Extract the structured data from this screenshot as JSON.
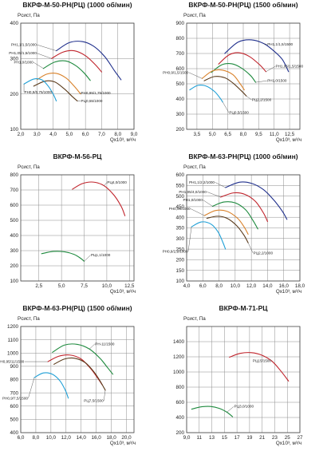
{
  "chart_data": [
    {
      "type": "line",
      "title": "ВКРФ-М-50-РН(РЦ) (1000 об/мин)",
      "ylabel": "Pсист, Па",
      "xlabel": "Qх10³, м³/ч",
      "xlim": [
        2.0,
        9.0
      ],
      "ylim": [
        100,
        400
      ],
      "xticks": [
        "2,0",
        "3,0",
        "4,0",
        "5,0",
        "6,0",
        "7,0",
        "8,0",
        "9,0"
      ],
      "yticks": [
        "100",
        "200",
        "300",
        "400"
      ],
      "grid": true,
      "series": [
        {
          "name": "РН1,1/1,5/1000",
          "color": "#1f2f8c",
          "points": [
            [
              4.2,
              322
            ],
            [
              5.0,
              345
            ],
            [
              5.8,
              348
            ],
            [
              6.5,
              335
            ],
            [
              7.2,
              305
            ],
            [
              7.8,
              265
            ],
            [
              8.2,
              240
            ]
          ],
          "label_at": [
            3.0,
            339
          ]
        },
        {
          "name": "РН1,05/1,5/1000",
          "color": "#c0232b",
          "points": [
            [
              3.9,
              300
            ],
            [
              4.6,
              318
            ],
            [
              5.3,
              322
            ],
            [
              6.0,
              308
            ],
            [
              6.6,
              283
            ],
            [
              7.0,
              262
            ]
          ],
          "label_at": [
            3.0,
            315
          ]
        },
        {
          "name": "РН1,0/1000",
          "color": "#1e8a3e",
          "points": [
            [
              3.4,
              272
            ],
            [
              4.1,
              290
            ],
            [
              4.8,
              293
            ],
            [
              5.4,
              280
            ],
            [
              5.9,
              260
            ],
            [
              6.3,
              238
            ]
          ],
          "label_at": [
            2.8,
            289
          ]
        },
        {
          "name": "РН0,95/1,75/1000",
          "color": "#d9822b",
          "points": [
            [
              3.0,
              240
            ],
            [
              3.6,
              256
            ],
            [
              4.2,
              258
            ],
            [
              4.8,
              245
            ],
            [
              5.3,
              222
            ],
            [
              5.7,
              200
            ]
          ],
          "label_at": [
            5.7,
            203
          ]
        },
        {
          "name": "РЦ0,55/1000",
          "color": "#5a3a1a",
          "points": [
            [
              2.8,
              222
            ],
            [
              3.5,
              236
            ],
            [
              4.1,
              234
            ],
            [
              4.7,
              214
            ],
            [
              5.2,
              192
            ],
            [
              5.5,
              180
            ]
          ],
          "label_at": [
            5.7,
            180
          ]
        },
        {
          "name": "РН0,9/0,75/1000",
          "color": "#1e9fd6",
          "points": [
            [
              2.2,
              228
            ],
            [
              2.8,
              242
            ],
            [
              3.3,
              240
            ],
            [
              3.7,
              222
            ],
            [
              4.0,
              200
            ],
            [
              4.2,
              180
            ]
          ],
          "label_at": [
            2.2,
            205
          ]
        }
      ]
    },
    {
      "type": "line",
      "title": "ВКРФ-М-50-РН(РЦ) (1500 об/мин)",
      "ylabel": "Pсист, Па",
      "xlabel": "Qх10³, м³/ч",
      "xlim": [
        2.5,
        13.5
      ],
      "ylim": [
        200,
        900
      ],
      "xticks": [
        "3,5",
        "5,0",
        "6,5",
        "8,0",
        "9,5",
        "11,0",
        "12,5"
      ],
      "yticks": [
        "200",
        "300",
        "400",
        "500",
        "600",
        "700",
        "800",
        "900"
      ],
      "grid": true,
      "series": [
        {
          "name": "РН1,1/1,5/1500",
          "color": "#1f2f8c",
          "points": [
            [
              6.2,
              700
            ],
            [
              7.5,
              775
            ],
            [
              8.8,
              790
            ],
            [
              10.0,
              765
            ],
            [
              11.0,
              715
            ],
            [
              11.8,
              660
            ],
            [
              12.4,
              580
            ]
          ],
          "label_at": [
            10.3,
            760
          ]
        },
        {
          "name": "РН1,05/1,5/1500",
          "color": "#c0232b",
          "points": [
            [
              5.6,
              630
            ],
            [
              6.6,
              690
            ],
            [
              7.6,
              705
            ],
            [
              8.6,
              680
            ],
            [
              9.6,
              625
            ],
            [
              10.2,
              580
            ]
          ],
          "label_at": [
            11.1,
            615
          ]
        },
        {
          "name": "РН1,0/1500",
          "color": "#1e8a3e",
          "points": [
            [
              4.9,
              575
            ],
            [
              5.9,
              625
            ],
            [
              6.9,
              632
            ],
            [
              7.8,
              605
            ],
            [
              8.7,
              555
            ],
            [
              9.2,
              510
            ]
          ],
          "label_at": [
            10.3,
            520
          ]
        },
        {
          "name": "РН0,9/1,5/1500",
          "color": "#d9822b",
          "points": [
            [
              4.0,
              535
            ],
            [
              5.0,
              585
            ],
            [
              6.0,
              590
            ],
            [
              7.0,
              560
            ],
            [
              7.7,
              500
            ],
            [
              8.1,
              460
            ]
          ],
          "label_at": [
            2.7,
            575
          ]
        },
        {
          "name": "РЦ2,2/1500",
          "color": "#5a3a1a",
          "points": [
            [
              4.2,
              520
            ],
            [
              5.2,
              548
            ],
            [
              6.2,
              540
            ],
            [
              7.0,
              505
            ],
            [
              7.8,
              455
            ],
            [
              8.3,
              420
            ]
          ],
          "label_at": [
            8.8,
            395
          ]
        },
        {
          "name": "РЦ0,5/1500",
          "color": "#1e9fd6",
          "points": [
            [
              2.8,
              460
            ],
            [
              3.6,
              490
            ],
            [
              4.4,
              485
            ],
            [
              5.2,
              450
            ],
            [
              5.7,
              410
            ],
            [
              6.0,
              380
            ]
          ],
          "label_at": [
            6.6,
            310
          ]
        }
      ]
    },
    {
      "type": "line",
      "title": "ВКРФ-М-56-РЦ",
      "ylabel": "Pсист, Па",
      "xlabel": "Qх10³, м³/ч",
      "xlim": [
        0.5,
        13.0
      ],
      "ylim": [
        100,
        800
      ],
      "xticks": [
        "2,5",
        "5,0",
        "7,5",
        "10,0",
        "12,5"
      ],
      "yticks": [
        "100",
        "200",
        "300",
        "400",
        "500",
        "600",
        "700",
        "800"
      ],
      "grid": true,
      "series": [
        {
          "name": "РЦ4,0/1000",
          "color": "#c0232b",
          "points": [
            [
              6.2,
              705
            ],
            [
              7.3,
              742
            ],
            [
              8.5,
              752
            ],
            [
              9.7,
              728
            ],
            [
              10.8,
              665
            ],
            [
              11.6,
              590
            ],
            [
              12.0,
              530
            ]
          ],
          "label_at": [
            10.0,
            750
          ]
        },
        {
          "name": "РЦ1,1/1000",
          "color": "#1e8a3e",
          "points": [
            [
              2.8,
              280
            ],
            [
              4.1,
              295
            ],
            [
              5.4,
              292
            ],
            [
              6.4,
              275
            ],
            [
              7.1,
              250
            ],
            [
              7.5,
              230
            ]
          ],
          "label_at": [
            8.2,
            270
          ]
        }
      ]
    },
    {
      "type": "line",
      "title": "ВКРФ-М-63-РН(РЦ) (1000 об/мин)",
      "ylabel": "Pсист, Па",
      "xlabel": "Qх10³, м³/ч",
      "xlim": [
        4.0,
        18.0
      ],
      "ylim": [
        100,
        600
      ],
      "xticks": [
        "4,0",
        "6,0",
        "8,0",
        "10,0",
        "12,0",
        "14,0",
        "16,0",
        "18,0"
      ],
      "yticks": [
        "100",
        "150",
        "200",
        "250",
        "300",
        "350",
        "400",
        "450",
        "500",
        "550",
        "600"
      ],
      "grid": true,
      "series": [
        {
          "name": "РН1,1/2,2/1000",
          "color": "#1f2f8c",
          "points": [
            [
              8.8,
              540
            ],
            [
              10.5,
              565
            ],
            [
              12.0,
              560
            ],
            [
              13.5,
              530
            ],
            [
              14.8,
              480
            ],
            [
              15.8,
              430
            ],
            [
              16.4,
              390
            ]
          ],
          "label_at": [
            7.5,
            565
          ]
        },
        {
          "name": "РН1,05/4,0/1000",
          "color": "#c0232b",
          "points": [
            [
              8.2,
              495
            ],
            [
              9.8,
              515
            ],
            [
              11.2,
              508
            ],
            [
              12.5,
              475
            ],
            [
              13.5,
              420
            ],
            [
              14.0,
              380
            ]
          ],
          "label_at": [
            6.5,
            520
          ]
        },
        {
          "name": "РН1,0/1000",
          "color": "#1e8a3e",
          "points": [
            [
              7.2,
              452
            ],
            [
              8.6,
              472
            ],
            [
              10.0,
              468
            ],
            [
              11.3,
              435
            ],
            [
              12.2,
              385
            ],
            [
              12.8,
              345
            ]
          ],
          "label_at": [
            6.0,
            482
          ]
        },
        {
          "name": "РН0,95/1000",
          "color": "#d9822b",
          "points": [
            [
              6.2,
              408
            ],
            [
              7.6,
              432
            ],
            [
              9.0,
              428
            ],
            [
              10.3,
              395
            ],
            [
              11.1,
              355
            ],
            [
              11.6,
              320
            ]
          ],
          "label_at": [
            4.5,
            440
          ]
        },
        {
          "name": "РЦ2,2/1000",
          "color": "#5a3a1a",
          "points": [
            [
              6.5,
              395
            ],
            [
              7.8,
              405
            ],
            [
              9.0,
              395
            ],
            [
              10.2,
              360
            ],
            [
              11.1,
              315
            ],
            [
              11.6,
              280
            ]
          ],
          "label_at": [
            12.2,
            232
          ]
        },
        {
          "name": "РН0,9/2,2/1000",
          "color": "#1e9fd6",
          "points": [
            [
              4.6,
              355
            ],
            [
              5.8,
              378
            ],
            [
              7.0,
              368
            ],
            [
              7.9,
              330
            ],
            [
              8.5,
              280
            ],
            [
              8.8,
              250
            ]
          ],
          "label_at": [
            4.2,
            240
          ]
        }
      ]
    },
    {
      "type": "line",
      "title": "ВКРФ-М-63-РН(РЦ) (1500 об/мин)",
      "ylabel": "Pсист, Па",
      "xlabel": "Qх10³, м³/ч",
      "xlim": [
        6.0,
        21.0
      ],
      "ylim": [
        400,
        1200
      ],
      "xticks": [
        "6,0",
        "8,0",
        "10,0",
        "12,0",
        "14,0",
        "16,0",
        "18,0",
        "20,0"
      ],
      "yticks": [
        "400",
        "500",
        "600",
        "700",
        "800",
        "900",
        "1000",
        "1100",
        "1200"
      ],
      "grid": true,
      "series": [
        {
          "name": "РН-11/1500",
          "color": "#1e8a3e",
          "points": [
            [
              10.2,
              1005
            ],
            [
              11.8,
              1060
            ],
            [
              13.5,
              1065
            ],
            [
              15.1,
              1030
            ],
            [
              16.5,
              960
            ],
            [
              17.5,
              890
            ],
            [
              18.2,
              840
            ]
          ],
          "label_at": [
            15.8,
            1068
          ]
        },
        {
          "name": "РН0,95/11/1500",
          "color": "#c0232b",
          "points": [
            [
              9.6,
              935
            ],
            [
              11.0,
              975
            ],
            [
              12.5,
              985
            ],
            [
              14.0,
              955
            ],
            [
              15.3,
              880
            ],
            [
              16.2,
              810
            ],
            [
              16.8,
              760
            ]
          ],
          "label_at": [
            6.5,
            935
          ]
        },
        {
          "name": "РЦ7,5/1500",
          "color": "#5a3a1a",
          "points": [
            [
              10.4,
              915
            ],
            [
              11.8,
              955
            ],
            [
              13.2,
              960
            ],
            [
              14.6,
              925
            ],
            [
              15.8,
              850
            ],
            [
              16.6,
              780
            ],
            [
              17.2,
              720
            ]
          ],
          "label_at": [
            17.0,
            640
          ]
        },
        {
          "name": "РН0,9/7,5/1500",
          "color": "#1e9fd6",
          "points": [
            [
              7.8,
              815
            ],
            [
              9.0,
              850
            ],
            [
              10.2,
              840
            ],
            [
              11.2,
              790
            ],
            [
              11.9,
              720
            ],
            [
              12.3,
              660
            ]
          ],
          "label_at": [
            7.0,
            660
          ]
        }
      ]
    },
    {
      "type": "line",
      "title": "ВКРФ-М-71-РЦ",
      "ylabel": "Pсист, Па",
      "xlabel": "Qх10³, м³/ч",
      "xlim": [
        9.0,
        27.0
      ],
      "ylim": [
        200,
        1600
      ],
      "xticks": [
        "9,0",
        "11",
        "13",
        "15",
        "17",
        "19",
        "21",
        "23",
        "25",
        "27"
      ],
      "yticks": [
        "200",
        "400",
        "600",
        "800",
        "1000",
        "1200",
        "1400"
      ],
      "grid": true,
      "series": [
        {
          "name": "РЦ3,0/1000",
          "color": "#1e8a3e",
          "points": [
            [
              9.8,
              510
            ],
            [
              11.3,
              540
            ],
            [
              12.8,
              545
            ],
            [
              14.2,
              520
            ],
            [
              15.4,
              470
            ],
            [
              16.3,
              410
            ]
          ],
          "label_at": [
            16.5,
            545
          ]
        },
        {
          "name": "РЦ15/1500",
          "color": "#c0232b",
          "points": [
            [
              15.8,
              1195
            ],
            [
              17.5,
              1245
            ],
            [
              19.3,
              1255
            ],
            [
              21.0,
              1220
            ],
            [
              22.6,
              1140
            ],
            [
              24.0,
              1010
            ],
            [
              25.2,
              880
            ]
          ],
          "label_at": [
            22.5,
            1150
          ]
        }
      ]
    }
  ]
}
